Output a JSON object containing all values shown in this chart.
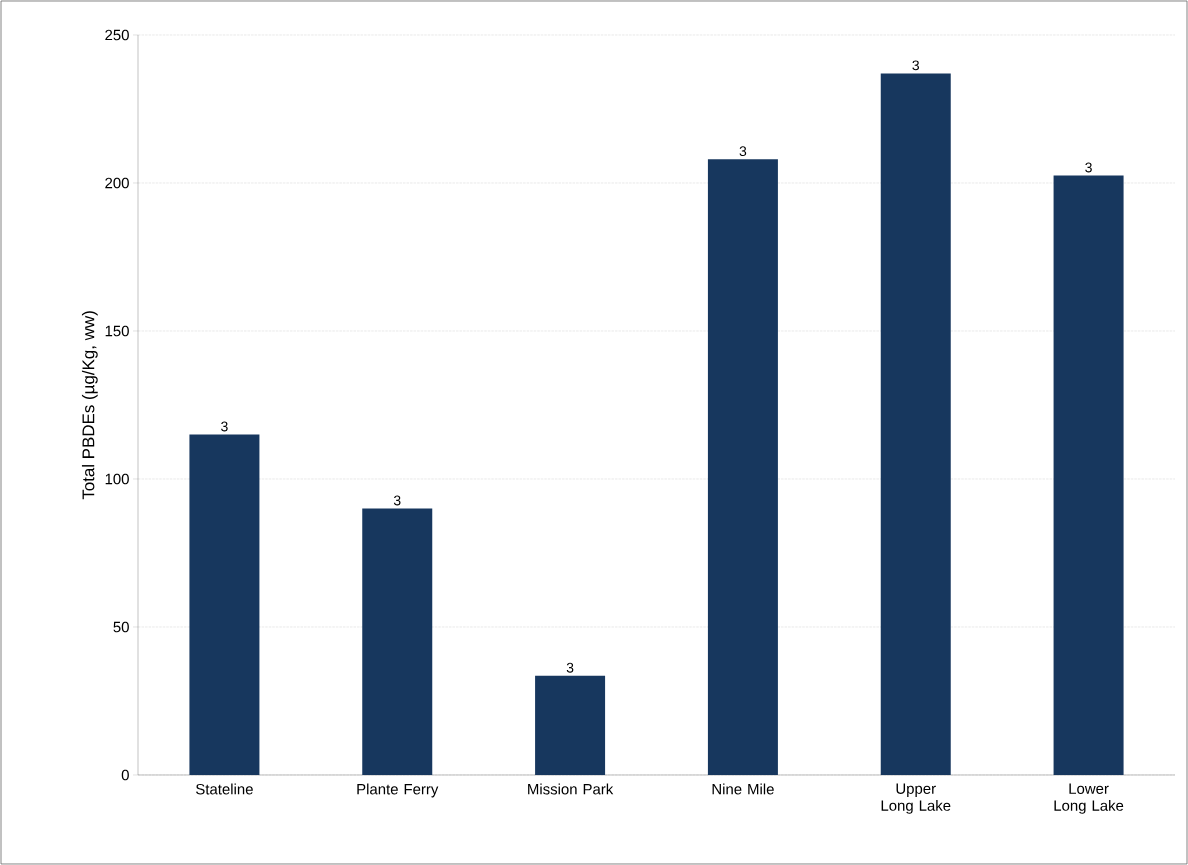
{
  "chart_data": {
    "type": "bar",
    "ylabel": "Total PBDEs (µg/Kg, ww)",
    "categories": [
      "Stateline",
      "Plante Ferry",
      "Mission Park",
      "Nine Mile",
      "Upper Long Lake",
      "Lower Long Lake"
    ],
    "values": [
      115,
      90,
      33.5,
      208,
      237,
      202.5
    ],
    "color": "#17375e",
    "ylim": [
      0,
      250
    ],
    "yticks": [
      0,
      50,
      100,
      150,
      200,
      250
    ],
    "grid": "y",
    "annotations": [
      {
        "text": "3",
        "x": "Stateline",
        "y": 115
      },
      {
        "text": "3",
        "x": "Plante Ferry",
        "y": 90
      },
      {
        "text": "3",
        "x": "Mission Park",
        "y": 33.5
      },
      {
        "text": "3",
        "x": "Nine Mile",
        "y": 208
      },
      {
        "text": "3",
        "x": "Upper Long Lake",
        "y": 237
      },
      {
        "text": "3",
        "x": "Lower Long Lake",
        "y": 202.5
      }
    ]
  }
}
